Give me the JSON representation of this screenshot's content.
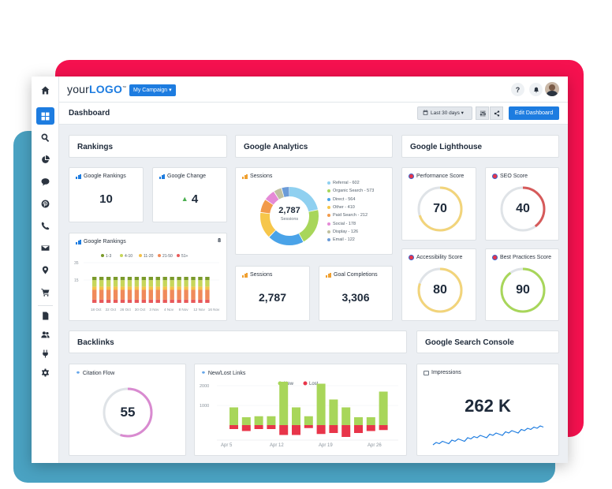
{
  "app": {
    "logo_prefix": "your",
    "logo_bold": "LOGO",
    "logo_tm": "™",
    "campaign_label": "My Campaign ▾",
    "help_label": "?",
    "page_title": "Dashboard",
    "date_range": "Last 30 days",
    "edit_label": "Edit Dashboard",
    "accent": "#1d7ce0"
  },
  "sidebar": {
    "items": [
      {
        "icon": "home-icon"
      },
      {
        "icon": "dashboard-grid-icon"
      },
      {
        "icon": "search-icon"
      },
      {
        "icon": "pie-chart-icon"
      },
      {
        "icon": "chat-icon"
      },
      {
        "icon": "pinterest-icon"
      },
      {
        "icon": "phone-icon"
      },
      {
        "icon": "mail-icon"
      },
      {
        "icon": "location-pin-icon"
      },
      {
        "icon": "cart-icon"
      },
      {
        "icon": "document-icon"
      },
      {
        "icon": "users-icon"
      },
      {
        "icon": "plug-icon"
      },
      {
        "icon": "gear-icon"
      }
    ]
  },
  "sections": {
    "rankings": "Rankings",
    "analytics": "Google Analytics",
    "lighthouse": "Google Lighthouse",
    "backlinks": "Backlinks",
    "search_console": "Google Search Console"
  },
  "rankings": {
    "google_rankings_label": "Google Rankings",
    "google_rankings_value": "10",
    "google_change_label": "Google Change",
    "google_change_value": "4",
    "chart_title": "Google Rankings",
    "chart_count": "8"
  },
  "analytics": {
    "sessions_title": "Sessions",
    "donut_total": "2,787",
    "donut_caption": "Sessions",
    "sessions_label": "Sessions",
    "sessions_value": "2,787",
    "goals_label": "Goal Completions",
    "goals_value": "3,306"
  },
  "lighthouse": {
    "performance_label": "Performance Score",
    "performance_value": "70",
    "seo_label": "SEO Score",
    "seo_value": "40",
    "accessibility_label": "Accessibility Score",
    "accessibility_value": "80",
    "best_practices_label": "Best Practices Score",
    "best_practices_value": "90"
  },
  "backlinks": {
    "citation_label": "Citation Flow",
    "citation_value": "55",
    "newlost_label": "New/Lost Links"
  },
  "search_console": {
    "impressions_label": "Impressions",
    "impressions_value": "262 K"
  },
  "chart_data": [
    {
      "type": "pie",
      "categories": [
        "Referral - 602",
        "Organic Search - 573",
        "Direct - 564",
        "Other - 410",
        "Paid Search - 212",
        "Social - 178",
        "Display - 126",
        "Email - 122"
      ],
      "values": [
        602,
        573,
        564,
        410,
        212,
        178,
        126,
        122
      ],
      "colors": [
        "#8fd0f0",
        "#a8d65a",
        "#4aa3e8",
        "#f6c64a",
        "#f29a4a",
        "#e58ad6",
        "#c0c0a0",
        "#6b9bd8"
      ]
    },
    {
      "type": "bar",
      "stacked": true,
      "legend": [
        "1-3",
        "4-10",
        "11-20",
        "21-50",
        "51+"
      ],
      "colors": [
        "#7a9a2a",
        "#c6d65a",
        "#f3c14a",
        "#f08a5a",
        "#e85a5a"
      ],
      "x_ticks": [
        "18 Oct",
        "22 Oct",
        "26 Oct",
        "30 Oct",
        "3 Nov",
        "4 Nov",
        "8 Nov",
        "12 Nov",
        "16 Nov"
      ],
      "y_ticks": [
        "35",
        "15"
      ],
      "bar_count": 17,
      "segment_values": [
        1,
        2,
        1,
        3,
        1
      ]
    },
    {
      "type": "bar",
      "series": [
        {
          "name": "New",
          "color": "#a8d65a",
          "values": [
            900,
            400,
            450,
            450,
            2200,
            900,
            450,
            2100,
            1300,
            900,
            400,
            400,
            1700
          ]
        },
        {
          "name": "Lost",
          "color": "#e8354a",
          "values": [
            -200,
            -300,
            -200,
            -200,
            -500,
            -500,
            -150,
            -450,
            -400,
            -600,
            -400,
            -300,
            -250
          ]
        }
      ],
      "y_ticks": [
        "2000",
        "1000"
      ],
      "x_ticks": [
        "Apr 5",
        "Apr 12",
        "Apr 19",
        "Apr 26"
      ]
    },
    {
      "type": "line",
      "values": [
        3,
        5,
        4,
        6,
        5,
        4,
        7,
        6,
        8,
        7,
        6,
        9,
        8,
        10,
        9,
        11,
        10,
        9,
        12,
        11,
        13,
        12,
        11,
        14,
        13,
        15,
        14,
        13,
        16,
        15,
        17,
        16,
        18,
        17,
        19,
        18
      ]
    }
  ]
}
